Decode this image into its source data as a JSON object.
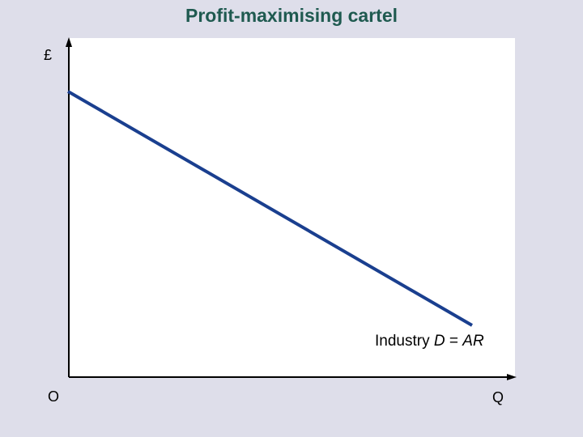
{
  "slide": {
    "title": "Profit-maximising cartel"
  },
  "diagram": {
    "y_axis_label": "£",
    "x_axis_label": "Q",
    "origin_label": "O",
    "demand_curve": {
      "label_prefix": "Industry ",
      "label_D": "D",
      "label_eq": " = ",
      "label_AR": "AR",
      "color": "#1a3f8f"
    }
  },
  "colors": {
    "background": "#dedeea",
    "panel": "#ffffff",
    "title": "#1f5a50",
    "axis": "#000000"
  }
}
